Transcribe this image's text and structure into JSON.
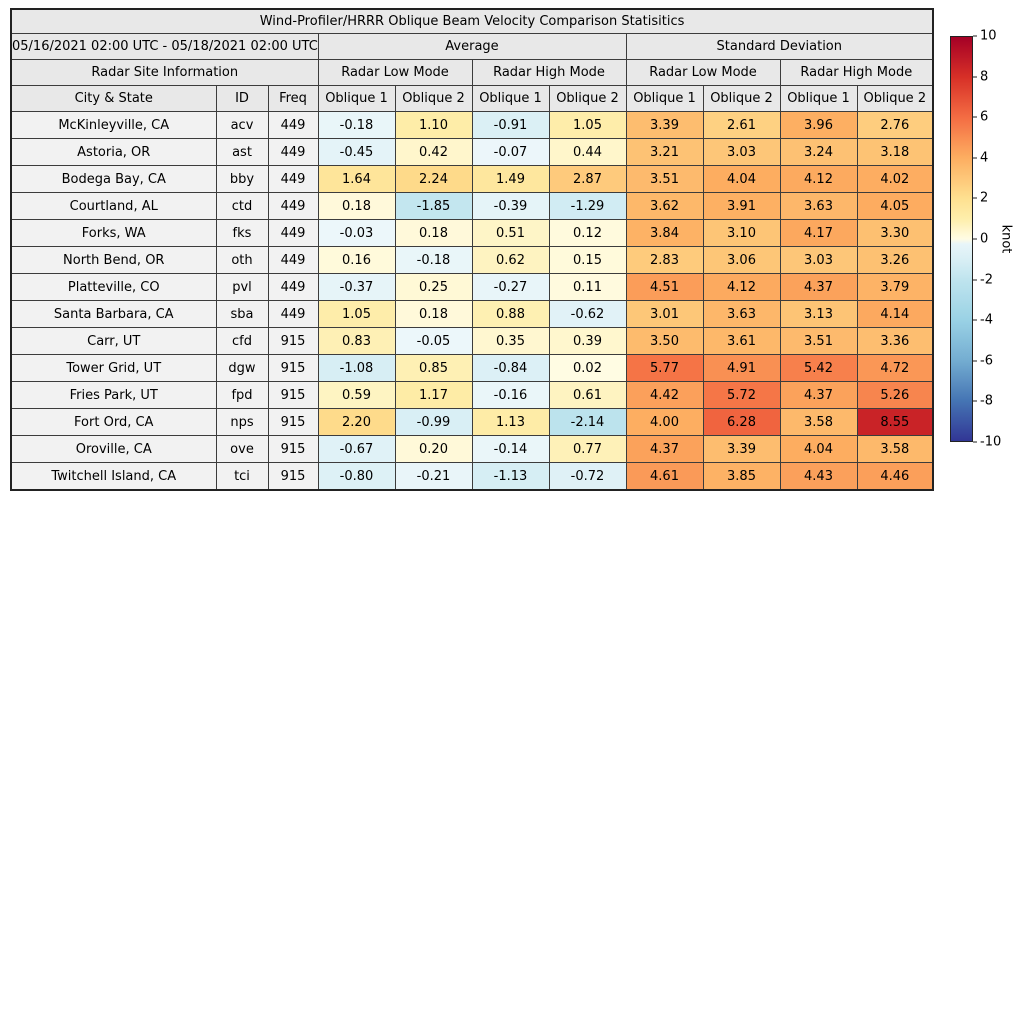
{
  "title": "Wind-Profiler/HRRR Oblique Beam Velocity Comparison Statisitics",
  "header": {
    "date_range": "05/16/2021 02:00 UTC - 05/18/2021 02:00 UTC",
    "group_average": "Average",
    "group_stddev": "Standard Deviation",
    "site_info": "Radar Site Information",
    "modes": [
      "Radar Low Mode",
      "Radar High Mode",
      "Radar Low Mode",
      "Radar High Mode"
    ],
    "columns": [
      "City & State",
      "ID",
      "Freq",
      "Oblique 1",
      "Oblique 2",
      "Oblique 1",
      "Oblique 2",
      "Oblique 1",
      "Oblique 2",
      "Oblique 1",
      "Oblique 2"
    ]
  },
  "chart_data": {
    "type": "heatmap",
    "title": "Wind-Profiler/HRRR Oblique Beam Velocity Comparison Statisitics",
    "value_columns": [
      "Average Low Oblique 1",
      "Average Low Oblique 2",
      "Average High Oblique 1",
      "Average High Oblique 2",
      "StdDev Low Oblique 1",
      "StdDev Low Oblique 2",
      "StdDev High Oblique 1",
      "StdDev High Oblique 2"
    ],
    "unit": "knot",
    "value_range": [
      -10,
      10
    ],
    "rows": [
      {
        "city": "McKinleyville, CA",
        "id": "acv",
        "freq": 449,
        "values": [
          -0.18,
          1.1,
          -0.91,
          1.05,
          3.39,
          2.61,
          3.96,
          2.76
        ]
      },
      {
        "city": "Astoria, OR",
        "id": "ast",
        "freq": 449,
        "values": [
          -0.45,
          0.42,
          -0.07,
          0.44,
          3.21,
          3.03,
          3.24,
          3.18
        ]
      },
      {
        "city": "Bodega Bay, CA",
        "id": "bby",
        "freq": 449,
        "values": [
          1.64,
          2.24,
          1.49,
          2.87,
          3.51,
          4.04,
          4.12,
          4.02
        ]
      },
      {
        "city": "Courtland, AL",
        "id": "ctd",
        "freq": 449,
        "values": [
          0.18,
          -1.85,
          -0.39,
          -1.29,
          3.62,
          3.91,
          3.63,
          4.05
        ]
      },
      {
        "city": "Forks, WA",
        "id": "fks",
        "freq": 449,
        "values": [
          -0.03,
          0.18,
          0.51,
          0.12,
          3.84,
          3.1,
          4.17,
          3.3
        ]
      },
      {
        "city": "North Bend, OR",
        "id": "oth",
        "freq": 449,
        "values": [
          0.16,
          -0.18,
          0.62,
          0.15,
          2.83,
          3.06,
          3.03,
          3.26
        ]
      },
      {
        "city": "Platteville, CO",
        "id": "pvl",
        "freq": 449,
        "values": [
          -0.37,
          0.25,
          -0.27,
          0.11,
          4.51,
          4.12,
          4.37,
          3.79
        ]
      },
      {
        "city": "Santa Barbara, CA",
        "id": "sba",
        "freq": 449,
        "values": [
          1.05,
          0.18,
          0.88,
          -0.62,
          3.01,
          3.63,
          3.13,
          4.14
        ]
      },
      {
        "city": "Carr, UT",
        "id": "cfd",
        "freq": 915,
        "values": [
          0.83,
          -0.05,
          0.35,
          0.39,
          3.5,
          3.61,
          3.51,
          3.36
        ]
      },
      {
        "city": "Tower Grid, UT",
        "id": "dgw",
        "freq": 915,
        "values": [
          -1.08,
          0.85,
          -0.84,
          0.02,
          5.77,
          4.91,
          5.42,
          4.72
        ]
      },
      {
        "city": "Fries Park, UT",
        "id": "fpd",
        "freq": 915,
        "values": [
          0.59,
          1.17,
          -0.16,
          0.61,
          4.42,
          5.72,
          4.37,
          5.26
        ]
      },
      {
        "city": "Fort Ord, CA",
        "id": "nps",
        "freq": 915,
        "values": [
          2.2,
          -0.99,
          1.13,
          -2.14,
          4.0,
          6.28,
          3.58,
          8.55
        ]
      },
      {
        "city": "Oroville, CA",
        "id": "ove",
        "freq": 915,
        "values": [
          -0.67,
          0.2,
          -0.14,
          0.77,
          4.37,
          3.39,
          4.04,
          3.58
        ]
      },
      {
        "city": "Twitchell Island, CA",
        "id": "tci",
        "freq": 915,
        "values": [
          -0.8,
          -0.21,
          -1.13,
          -0.72,
          4.61,
          3.85,
          4.43,
          4.46
        ]
      }
    ]
  },
  "colorbar": {
    "label": "knot",
    "ticks": [
      10,
      8,
      6,
      4,
      2,
      0,
      -2,
      -4,
      -6,
      -8,
      -10
    ],
    "warm_stops": [
      [
        0,
        "#fffce4"
      ],
      [
        1,
        "#feeeab"
      ],
      [
        2,
        "#fee090"
      ],
      [
        4,
        "#fdae61"
      ],
      [
        6,
        "#f46d43"
      ],
      [
        8,
        "#d73027"
      ],
      [
        10,
        "#a50026"
      ]
    ],
    "cool_stops": [
      [
        0,
        "#edf7fa"
      ],
      [
        1,
        "#d9eff5"
      ],
      [
        2,
        "#bfe4ee"
      ],
      [
        4,
        "#9ad2e5"
      ],
      [
        6,
        "#74add1"
      ],
      [
        8,
        "#4575b4"
      ],
      [
        10,
        "#313695"
      ]
    ]
  }
}
